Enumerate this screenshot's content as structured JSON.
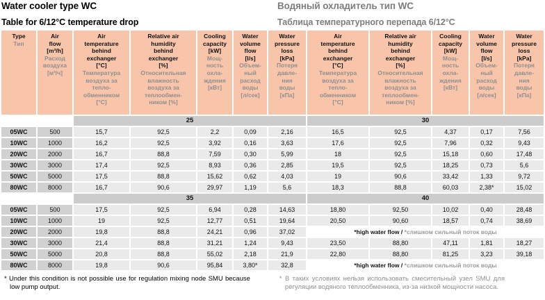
{
  "colors": {
    "header_bg": "#f8c5aa",
    "band_bg": "#cccccc",
    "type_cell_bg": "#d1d1d1",
    "value_cell_bg": "#eaeaea",
    "muted_text": "#8f8f8f"
  },
  "header": {
    "title_en": "Water cooler type WC",
    "title_ru": "Водяный охладитель тип WC",
    "subtitle_en": "Table for 6/12°C temperature drop",
    "subtitle_ru": "Таблица температурного перепада 6/12°С"
  },
  "table": {
    "columns": [
      {
        "en": "Type",
        "ru": "Тип"
      },
      {
        "en": "Air\nflow\n[m³/h]",
        "ru": "Расход\nвоздуха\n[м³/ч]"
      },
      {
        "en": "Air\ntemperature\nbehind\nexchanger\n[°C]",
        "ru": "Температура\nвоздуха за\nтепло-\nобменником\n[°C]"
      },
      {
        "en": "Relative air\nhumidity\nbehind\nexchanger\n[%]",
        "ru": "Относительная\nвлажность\nвоздуха за\nтеплообмен-\nником [%]"
      },
      {
        "en": "Cooling\ncapacity\n[kW]",
        "ru": "Мощ-\nность\nохла-\nждения\n[кВт]"
      },
      {
        "en": "Water\nvolume\nflow\n[l/s]",
        "ru": "Объем-\nный\nрасход\nводы\n[л/сек]"
      },
      {
        "en": "Water\npressure\nloss\n[kPa]",
        "ru": "Потеря\nдавле-\nния\nводы\n[кПа]"
      },
      {
        "en": "Air\ntemperature\nbehind\nexchanger\n[°C]",
        "ru": "Температура\nвоздуха за\nтепло-\nобменником\n[°C]"
      },
      {
        "en": "Relative air\nhumidity\nbehind\nexchanger\n[%]",
        "ru": "Относительная\nвлажность\nвоздуха за\nтеплообмен-\nником [%]"
      },
      {
        "en": "Cooling\ncapacity\n[kW]",
        "ru": "Мощ-\nность\nохла-\nждения\n[кВт]"
      },
      {
        "en": "Water\nvolume\nflow\n[l/s]",
        "ru": "Объем-\nный\nрасход\nводы\n[л/сек]"
      },
      {
        "en": "Water\npressure\nloss\n[kPa]",
        "ru": "Потеря\nдавле-\nния\nводы\n[кПа]"
      }
    ],
    "sections": [
      {
        "bands": [
          "25",
          "30"
        ],
        "rows": [
          {
            "type": "05WC",
            "flow": "500",
            "left": [
              "15,7",
              "92,5",
              "2,2",
              "0,09",
              "2,16"
            ],
            "right": [
              "16,5",
              "92,5",
              "4,37",
              "0,17",
              "7,56"
            ]
          },
          {
            "type": "10WC",
            "flow": "1000",
            "left": [
              "16,2",
              "92,5",
              "3,92",
              "0,16",
              "3,63"
            ],
            "right": [
              "17,6",
              "92,5",
              "7,96",
              "0,32",
              "9,43"
            ]
          },
          {
            "type": "20WC",
            "flow": "2000",
            "left": [
              "16,7",
              "88,8",
              "7,59",
              "0,30",
              "5,99"
            ],
            "right": [
              "18",
              "92,5",
              "15,18",
              "0,60",
              "17,48"
            ]
          },
          {
            "type": "30WC",
            "flow": "3000",
            "left": [
              "17,4",
              "92,5",
              "8,93",
              "0,36",
              "2,85"
            ],
            "right": [
              "19,5",
              "92,5",
              "18,25",
              "0,73",
              "5,6"
            ]
          },
          {
            "type": "50WC",
            "flow": "5000",
            "left": [
              "17,5",
              "88,8",
              "15,62",
              "0,62",
              "4,03"
            ],
            "right": [
              "19",
              "90,6",
              "33,42",
              "1,33",
              "9,72"
            ]
          },
          {
            "type": "80WC",
            "flow": "8000",
            "left": [
              "16,7",
              "90,6",
              "29,97",
              "1,19",
              "5,6"
            ],
            "right": [
              "18,3",
              "88,8",
              "60,03",
              "2,38*",
              "15,02"
            ]
          }
        ]
      },
      {
        "bands": [
          "35",
          "40"
        ],
        "rows": [
          {
            "type": "05WC",
            "flow": "500",
            "left": [
              "17,5",
              "92,5",
              "6,94",
              "0,28",
              "14,63"
            ],
            "right": [
              "18,80",
              "92,50",
              "10,02",
              "0,40",
              "28,48"
            ]
          },
          {
            "type": "10WC",
            "flow": "1000",
            "left": [
              "19",
              "92,5",
              "12,77",
              "0,51",
              "19,64"
            ],
            "right": [
              "20,50",
              "90,60",
              "18,57",
              "0,74",
              "38,69"
            ]
          },
          {
            "type": "20WC",
            "flow": "2000",
            "left": [
              "19,8",
              "88,8",
              "24,21",
              "0,96",
              "37,02"
            ],
            "note_en": "*high water flow /",
            "note_ru": "*слишком сильный поток воды"
          },
          {
            "type": "30WC",
            "flow": "3000",
            "left": [
              "21,4",
              "88,8",
              "31,21",
              "1,24",
              "9,43"
            ],
            "right": [
              "23,50",
              "88,80",
              "47,11",
              "1,81",
              "18,27"
            ]
          },
          {
            "type": "50WC",
            "flow": "5000",
            "left": [
              "20,8",
              "88,8",
              "55,02",
              "2,18",
              "21,9"
            ],
            "right": [
              "22,80",
              "88,80",
              "81,25",
              "3,23",
              "39,18"
            ]
          },
          {
            "type": "80WC",
            "flow": "8000",
            "left": [
              "19,8",
              "90,6",
              "95,84",
              "3,80*",
              "32,8"
            ],
            "note_en": "*high water flow /",
            "note_ru": "*слишком сильный поток воды"
          }
        ]
      }
    ]
  },
  "footnotes": {
    "en": "* Under this condition is not possible use for regulation mixing node SMU because low pump output.",
    "ru": "* В таких условиях нельзя использовать смесительный узел SMU для регуляции водяного теплообменника, из-за низкой мощности насоса."
  }
}
